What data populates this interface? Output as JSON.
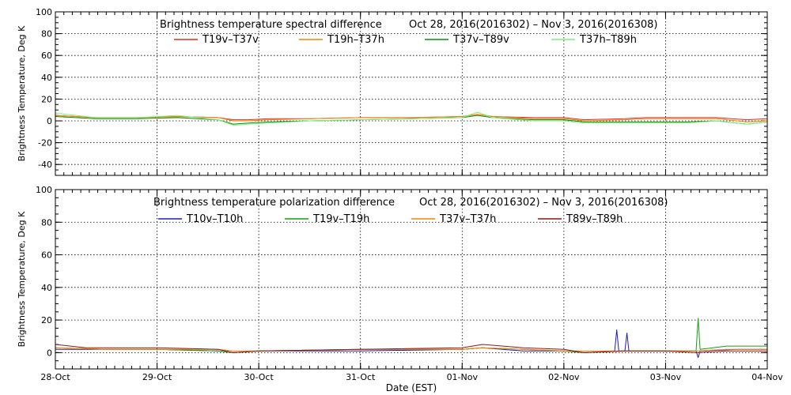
{
  "chart_data": [
    {
      "type": "line",
      "title": "Brightness temperature spectral difference",
      "date_range": "Oct 28, 2016(2016302) – Nov  3, 2016(2016308)",
      "ylabel": "Brightness Temperature, Deg K",
      "xlim": [
        0,
        7
      ],
      "ylim": [
        -50,
        100
      ],
      "yticks": [
        -40,
        -20,
        0,
        20,
        40,
        60,
        80,
        100
      ],
      "grid": true,
      "legend_position": "top",
      "series": [
        {
          "name": "T19v–T37v",
          "color": "#e8281e",
          "points": [
            [
              0,
              5
            ],
            [
              0.4,
              3
            ],
            [
              0.8,
              3
            ],
            [
              1.2,
              4
            ],
            [
              1.6,
              3
            ],
            [
              1.75,
              1
            ],
            [
              1.9,
              1
            ],
            [
              2.1,
              2
            ],
            [
              2.5,
              2
            ],
            [
              3,
              3
            ],
            [
              3.5,
              3
            ],
            [
              4,
              4
            ],
            [
              4.15,
              6
            ],
            [
              4.3,
              4
            ],
            [
              4.7,
              3
            ],
            [
              5,
              3
            ],
            [
              5.2,
              1
            ],
            [
              5.6,
              2
            ],
            [
              5.8,
              3
            ],
            [
              6.2,
              3
            ],
            [
              6.5,
              3
            ],
            [
              6.8,
              1
            ],
            [
              7,
              2
            ]
          ]
        },
        {
          "name": "T19h–T37h",
          "color": "#f0820a",
          "points": [
            [
              0,
              5
            ],
            [
              0.4,
              3
            ],
            [
              0.8,
              3
            ],
            [
              1.2,
              4
            ],
            [
              1.6,
              3
            ],
            [
              1.75,
              0
            ],
            [
              1.9,
              0
            ],
            [
              2.1,
              1
            ],
            [
              2.5,
              2
            ],
            [
              3,
              3
            ],
            [
              3.5,
              3
            ],
            [
              4,
              4
            ],
            [
              4.15,
              6
            ],
            [
              4.3,
              4
            ],
            [
              4.7,
              2
            ],
            [
              5,
              2
            ],
            [
              5.2,
              0
            ],
            [
              5.6,
              1
            ],
            [
              5.8,
              2
            ],
            [
              6.2,
              2
            ],
            [
              6.5,
              2
            ],
            [
              6.8,
              -1
            ],
            [
              7,
              0
            ]
          ]
        },
        {
          "name": "T37v–T89v",
          "color": "#0a8c0a",
          "points": [
            [
              0,
              4
            ],
            [
              0.4,
              2
            ],
            [
              0.8,
              2
            ],
            [
              1.2,
              3
            ],
            [
              1.6,
              1
            ],
            [
              1.75,
              -3
            ],
            [
              1.9,
              -2
            ],
            [
              2.1,
              -1
            ],
            [
              2.5,
              0
            ],
            [
              3,
              1
            ],
            [
              3.5,
              2
            ],
            [
              4,
              3
            ],
            [
              4.15,
              5
            ],
            [
              4.3,
              3
            ],
            [
              4.7,
              1
            ],
            [
              5,
              1
            ],
            [
              5.2,
              -1
            ],
            [
              5.6,
              -1
            ],
            [
              5.8,
              -1
            ],
            [
              6.2,
              -1
            ],
            [
              6.5,
              0
            ],
            [
              6.8,
              -3
            ],
            [
              7,
              -1
            ]
          ]
        },
        {
          "name": "T37h–T89h",
          "color": "#7cf07c",
          "points": [
            [
              0,
              7
            ],
            [
              0.4,
              3
            ],
            [
              0.8,
              3
            ],
            [
              1.2,
              5
            ],
            [
              1.6,
              1
            ],
            [
              1.75,
              -4
            ],
            [
              1.9,
              -3
            ],
            [
              2.1,
              -2
            ],
            [
              2.5,
              0
            ],
            [
              3,
              1
            ],
            [
              3.5,
              2
            ],
            [
              4,
              3
            ],
            [
              4.15,
              8
            ],
            [
              4.3,
              3
            ],
            [
              4.7,
              0
            ],
            [
              5,
              0
            ],
            [
              5.2,
              -2
            ],
            [
              5.6,
              -2
            ],
            [
              5.8,
              -2
            ],
            [
              6.2,
              -2
            ],
            [
              6.5,
              0
            ],
            [
              6.8,
              -3
            ],
            [
              7,
              -1
            ]
          ]
        }
      ]
    },
    {
      "type": "line",
      "title": "Brightness temperature polarization difference",
      "date_range": "Oct 28, 2016(2016302) – Nov  3, 2016(2016308)",
      "ylabel": "Brightness Temperature, Deg K",
      "xlabel": "Date (EST)",
      "xlim": [
        0,
        7
      ],
      "ylim": [
        -10,
        100
      ],
      "yticks": [
        0,
        20,
        40,
        60,
        80,
        100
      ],
      "xtick_labels": [
        "28-Oct",
        "29-Oct",
        "30-Oct",
        "31-Oct",
        "01-Nov",
        "02-Nov",
        "03-Nov",
        "04-Nov"
      ],
      "grid": true,
      "legend_position": "top",
      "series": [
        {
          "name": "T10v–T10h",
          "color": "#1e1eb4",
          "points": [
            [
              0,
              2
            ],
            [
              0.5,
              2
            ],
            [
              1,
              2
            ],
            [
              1.6,
              1
            ],
            [
              1.75,
              0
            ],
            [
              2,
              1
            ],
            [
              3,
              1
            ],
            [
              4,
              2
            ],
            [
              4.2,
              3
            ],
            [
              4.6,
              1
            ],
            [
              5,
              1
            ],
            [
              5.2,
              0
            ],
            [
              5.5,
              1
            ],
            [
              5.52,
              14
            ],
            [
              5.54,
              1
            ],
            [
              5.6,
              1
            ],
            [
              5.62,
              12
            ],
            [
              5.64,
              1
            ],
            [
              6,
              1
            ],
            [
              6.3,
              1
            ],
            [
              6.32,
              -3
            ],
            [
              6.34,
              1
            ],
            [
              6.7,
              2
            ],
            [
              7,
              2
            ]
          ]
        },
        {
          "name": "T19v–T19h",
          "color": "#14a014",
          "points": [
            [
              0,
              3
            ],
            [
              0.5,
              2
            ],
            [
              1,
              2
            ],
            [
              1.6,
              1
            ],
            [
              1.75,
              0
            ],
            [
              2,
              1
            ],
            [
              3,
              2
            ],
            [
              4,
              2
            ],
            [
              4.2,
              3
            ],
            [
              4.6,
              2
            ],
            [
              5,
              1
            ],
            [
              5.2,
              0
            ],
            [
              5.6,
              1
            ],
            [
              6,
              1
            ],
            [
              6.3,
              1
            ],
            [
              6.32,
              21
            ],
            [
              6.34,
              2
            ],
            [
              6.6,
              4
            ],
            [
              7,
              4
            ]
          ]
        },
        {
          "name": "T37v–T37h",
          "color": "#f0820a",
          "points": [
            [
              0,
              3
            ],
            [
              0.5,
              2
            ],
            [
              1,
              2
            ],
            [
              1.6,
              2
            ],
            [
              1.75,
              1
            ],
            [
              2,
              1
            ],
            [
              3,
              2
            ],
            [
              4,
              2
            ],
            [
              4.2,
              3
            ],
            [
              4.6,
              2
            ],
            [
              5,
              1
            ],
            [
              5.2,
              1
            ],
            [
              5.6,
              1
            ],
            [
              6,
              1
            ],
            [
              6.3,
              1
            ],
            [
              6.6,
              2
            ],
            [
              7,
              2
            ]
          ]
        },
        {
          "name": "T89v–T89h",
          "color": "#961414",
          "points": [
            [
              0,
              5
            ],
            [
              0.3,
              3
            ],
            [
              0.6,
              3
            ],
            [
              1,
              3
            ],
            [
              1.6,
              2
            ],
            [
              1.75,
              0
            ],
            [
              2,
              1
            ],
            [
              3,
              2
            ],
            [
              4,
              3
            ],
            [
              4.2,
              5
            ],
            [
              4.6,
              3
            ],
            [
              5,
              2
            ],
            [
              5.2,
              0
            ],
            [
              5.6,
              1
            ],
            [
              6,
              1
            ],
            [
              6.3,
              0
            ],
            [
              6.6,
              1
            ],
            [
              7,
              1
            ]
          ]
        }
      ]
    }
  ]
}
